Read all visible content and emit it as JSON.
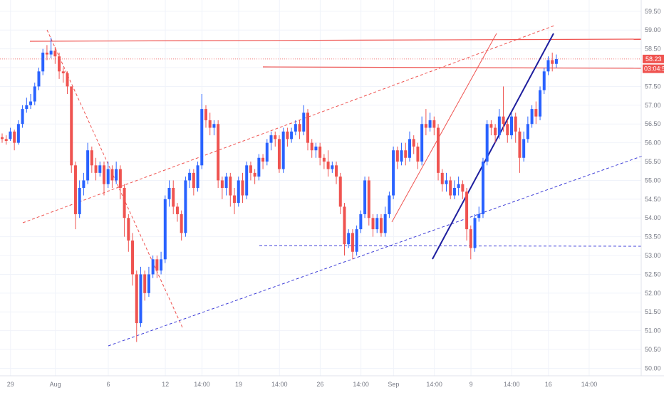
{
  "chart_data": {
    "type": "candlestick",
    "title": "",
    "xlabel": "",
    "ylabel": "",
    "ylim": [
      49.8,
      59.8
    ],
    "y_ticks": [
      50.0,
      50.5,
      51.0,
      51.5,
      52.0,
      52.5,
      53.0,
      53.5,
      54.0,
      54.5,
      55.0,
      55.5,
      56.0,
      56.5,
      57.0,
      57.5,
      58.0,
      58.5,
      59.0,
      59.5
    ],
    "y_tick_labels": [
      "50.00",
      "50.50",
      "51.00",
      "51.50",
      "52.00",
      "52.50",
      "53.00",
      "53.50",
      "54.00",
      "54.50",
      "55.00",
      "55.50",
      "56.00",
      "56.50",
      "57.00",
      "57.50",
      "58.00",
      "58.50",
      "59.00",
      "59.50"
    ],
    "x_ticks": [
      {
        "label": "29",
        "bar": 1
      },
      {
        "label": "Aug",
        "bar": 12
      },
      {
        "label": "6",
        "bar": 25
      },
      {
        "label": "12",
        "bar": 39
      },
      {
        "label": "14:00",
        "bar": 48
      },
      {
        "label": "19",
        "bar": 57
      },
      {
        "label": "14:00",
        "bar": 67
      },
      {
        "label": "26",
        "bar": 77
      },
      {
        "label": "14:00",
        "bar": 87
      },
      {
        "label": "Sep",
        "bar": 95
      },
      {
        "label": "14:00",
        "bar": 105
      },
      {
        "label": "9",
        "bar": 114
      },
      {
        "label": "14:00",
        "bar": 124
      },
      {
        "label": "16",
        "bar": 133
      },
      {
        "label": "14:00",
        "bar": 143
      }
    ],
    "last_price": {
      "value": 58.23,
      "label": "58.23"
    },
    "countdown": {
      "value": 57.97,
      "label": "03:04:5"
    },
    "colors": {
      "up": "#2962ff",
      "down": "#ef5350",
      "grid": "#f0f3fa",
      "axis_text": "#787b86",
      "trend_red": "#ef5350",
      "trend_blue": "#1e1e9e"
    },
    "candles": [
      [
        56.15,
        56.1,
        56.0,
        56.25
      ],
      [
        56.1,
        56.05,
        55.95,
        56.2
      ],
      [
        56.1,
        56.3,
        56.05,
        56.4
      ],
      [
        56.3,
        56.0,
        55.8,
        56.35
      ],
      [
        56.0,
        56.5,
        55.95,
        56.6
      ],
      [
        56.5,
        56.9,
        56.4,
        57.0
      ],
      [
        56.9,
        57.0,
        56.8,
        57.2
      ],
      [
        57.0,
        57.1,
        56.9,
        57.3
      ],
      [
        57.1,
        57.5,
        57.0,
        57.6
      ],
      [
        57.5,
        57.9,
        57.4,
        58.0
      ],
      [
        57.9,
        58.4,
        57.8,
        58.5
      ],
      [
        58.4,
        58.35,
        58.2,
        58.6
      ],
      [
        58.35,
        58.45,
        58.25,
        58.8
      ],
      [
        58.45,
        58.3,
        58.1,
        58.55
      ],
      [
        58.3,
        57.9,
        57.7,
        58.4
      ],
      [
        57.9,
        57.85,
        57.6,
        58.0
      ],
      [
        57.85,
        57.5,
        57.3,
        57.9
      ],
      [
        57.5,
        55.4,
        55.2,
        57.5
      ],
      [
        55.4,
        54.1,
        53.7,
        55.5
      ],
      [
        54.1,
        54.8,
        54.0,
        55.0
      ],
      [
        54.8,
        55.0,
        54.6,
        55.2
      ],
      [
        55.0,
        55.8,
        54.9,
        56.0
      ],
      [
        55.8,
        55.4,
        55.2,
        55.9
      ],
      [
        55.4,
        55.2,
        55.0,
        55.6
      ],
      [
        55.2,
        55.4,
        55.1,
        55.5
      ],
      [
        55.4,
        54.9,
        54.6,
        55.5
      ],
      [
        54.9,
        55.3,
        54.8,
        55.5
      ],
      [
        55.3,
        55.0,
        54.8,
        55.4
      ],
      [
        55.0,
        55.3,
        54.9,
        55.5
      ],
      [
        55.3,
        54.8,
        54.5,
        55.4
      ],
      [
        54.8,
        54.0,
        53.5,
        54.9
      ],
      [
        54.0,
        53.4,
        53.1,
        54.1
      ],
      [
        53.4,
        52.5,
        52.2,
        53.6
      ],
      [
        52.5,
        51.2,
        50.7,
        52.6
      ],
      [
        51.2,
        52.5,
        51.1,
        52.7
      ],
      [
        52.5,
        52.0,
        51.8,
        52.6
      ],
      [
        52.0,
        52.5,
        51.9,
        52.7
      ],
      [
        52.5,
        52.9,
        52.4,
        53.0
      ],
      [
        52.9,
        52.6,
        52.4,
        53.0
      ],
      [
        52.6,
        52.9,
        52.5,
        53.1
      ],
      [
        52.9,
        54.5,
        52.8,
        54.6
      ],
      [
        54.5,
        54.8,
        54.3,
        55.0
      ],
      [
        54.8,
        54.3,
        54.1,
        55.0
      ],
      [
        54.3,
        54.1,
        53.9,
        54.4
      ],
      [
        54.1,
        53.6,
        53.4,
        54.2
      ],
      [
        53.6,
        55.0,
        53.5,
        55.1
      ],
      [
        55.0,
        55.2,
        54.8,
        55.3
      ],
      [
        55.2,
        54.8,
        54.6,
        55.3
      ],
      [
        54.8,
        55.4,
        54.7,
        55.5
      ],
      [
        55.4,
        56.9,
        55.3,
        57.3
      ],
      [
        56.9,
        56.6,
        56.4,
        57.0
      ],
      [
        56.6,
        56.4,
        56.2,
        56.8
      ],
      [
        56.4,
        56.5,
        56.2,
        56.6
      ],
      [
        56.5,
        55.0,
        54.8,
        56.6
      ],
      [
        55.0,
        54.8,
        54.5,
        55.1
      ],
      [
        54.8,
        55.1,
        54.6,
        55.2
      ],
      [
        55.1,
        54.6,
        54.3,
        55.2
      ],
      [
        54.6,
        54.4,
        54.1,
        54.8
      ],
      [
        54.4,
        55.0,
        54.3,
        55.1
      ],
      [
        55.0,
        54.6,
        54.4,
        55.2
      ],
      [
        54.6,
        55.4,
        54.5,
        55.5
      ],
      [
        55.4,
        55.2,
        55.0,
        55.5
      ],
      [
        55.2,
        55.1,
        54.9,
        55.3
      ],
      [
        55.1,
        55.6,
        55.0,
        55.7
      ],
      [
        55.6,
        55.5,
        55.3,
        55.7
      ],
      [
        55.5,
        56.0,
        55.4,
        56.1
      ],
      [
        56.0,
        56.2,
        55.8,
        56.3
      ],
      [
        56.2,
        56.1,
        55.9,
        56.3
      ],
      [
        56.1,
        55.3,
        55.2,
        56.2
      ],
      [
        55.3,
        56.3,
        55.2,
        56.4
      ],
      [
        56.3,
        56.1,
        55.9,
        56.4
      ],
      [
        56.1,
        56.3,
        56.0,
        56.4
      ],
      [
        56.3,
        56.5,
        56.2,
        56.6
      ],
      [
        56.5,
        56.3,
        56.1,
        56.6
      ],
      [
        56.3,
        56.8,
        56.2,
        57.0
      ],
      [
        56.8,
        56.0,
        55.8,
        56.9
      ],
      [
        56.0,
        55.8,
        55.6,
        56.1
      ],
      [
        55.8,
        55.9,
        55.6,
        56.0
      ],
      [
        55.9,
        55.6,
        55.4,
        56.0
      ],
      [
        55.6,
        55.5,
        55.3,
        55.7
      ],
      [
        55.5,
        55.3,
        55.1,
        55.8
      ],
      [
        55.3,
        55.4,
        55.2,
        55.5
      ],
      [
        55.4,
        55.1,
        54.9,
        55.5
      ],
      [
        55.1,
        54.3,
        54.1,
        55.2
      ],
      [
        54.3,
        53.3,
        53.0,
        54.4
      ],
      [
        53.3,
        53.6,
        53.2,
        53.7
      ],
      [
        53.6,
        53.1,
        52.9,
        53.7
      ],
      [
        53.1,
        53.7,
        53.0,
        53.8
      ],
      [
        53.7,
        54.1,
        53.6,
        54.2
      ],
      [
        54.1,
        55.0,
        54.0,
        55.1
      ],
      [
        55.0,
        54.0,
        53.8,
        55.1
      ],
      [
        54.0,
        53.7,
        53.5,
        54.1
      ],
      [
        53.7,
        54.0,
        53.6,
        54.1
      ],
      [
        54.0,
        53.6,
        53.5,
        54.1
      ],
      [
        53.6,
        54.1,
        53.5,
        54.3
      ],
      [
        54.1,
        54.6,
        54.0,
        54.7
      ],
      [
        54.6,
        55.8,
        54.5,
        55.9
      ],
      [
        55.8,
        55.5,
        55.3,
        55.9
      ],
      [
        55.5,
        55.8,
        55.4,
        56.0
      ],
      [
        55.8,
        55.6,
        55.4,
        56.0
      ],
      [
        55.6,
        56.1,
        55.5,
        56.3
      ],
      [
        56.1,
        55.9,
        55.7,
        56.2
      ],
      [
        55.9,
        55.5,
        55.3,
        56.0
      ],
      [
        55.5,
        56.5,
        55.4,
        56.7
      ],
      [
        56.5,
        56.4,
        56.2,
        56.9
      ],
      [
        56.4,
        56.6,
        56.3,
        56.8
      ],
      [
        56.6,
        56.4,
        56.2,
        56.7
      ],
      [
        56.4,
        55.2,
        55.0,
        56.5
      ],
      [
        55.2,
        54.9,
        54.7,
        55.3
      ],
      [
        54.9,
        55.0,
        54.7,
        55.2
      ],
      [
        55.0,
        54.6,
        54.5,
        55.1
      ],
      [
        54.6,
        54.8,
        54.5,
        55.0
      ],
      [
        54.8,
        54.9,
        54.6,
        55.1
      ],
      [
        54.9,
        54.7,
        54.5,
        55.0
      ],
      [
        54.7,
        53.7,
        53.4,
        54.8
      ],
      [
        53.7,
        53.2,
        52.9,
        53.8
      ],
      [
        53.2,
        54.0,
        53.1,
        54.1
      ],
      [
        54.0,
        54.1,
        53.9,
        54.3
      ],
      [
        54.1,
        55.5,
        54.0,
        55.6
      ],
      [
        55.5,
        56.5,
        55.4,
        56.6
      ],
      [
        56.5,
        56.4,
        56.2,
        56.6
      ],
      [
        56.4,
        56.2,
        56.0,
        56.5
      ],
      [
        56.2,
        56.7,
        56.1,
        56.9
      ],
      [
        56.7,
        56.5,
        56.3,
        57.5
      ],
      [
        56.5,
        56.2,
        56.0,
        56.6
      ],
      [
        56.2,
        56.7,
        56.1,
        56.8
      ],
      [
        56.7,
        56.3,
        56.0,
        56.8
      ],
      [
        56.3,
        55.6,
        55.2,
        56.4
      ],
      [
        55.6,
        56.1,
        55.5,
        56.3
      ],
      [
        56.1,
        56.5,
        56.0,
        56.7
      ],
      [
        56.5,
        56.9,
        56.4,
        57.0
      ],
      [
        56.9,
        56.7,
        56.5,
        57.1
      ],
      [
        56.7,
        57.4,
        56.6,
        57.5
      ],
      [
        57.4,
        57.9,
        57.3,
        58.0
      ],
      [
        57.9,
        58.2,
        57.8,
        58.3
      ],
      [
        58.2,
        58.1,
        57.9,
        58.4
      ],
      [
        58.1,
        58.23,
        58.0,
        58.35
      ]
    ]
  }
}
